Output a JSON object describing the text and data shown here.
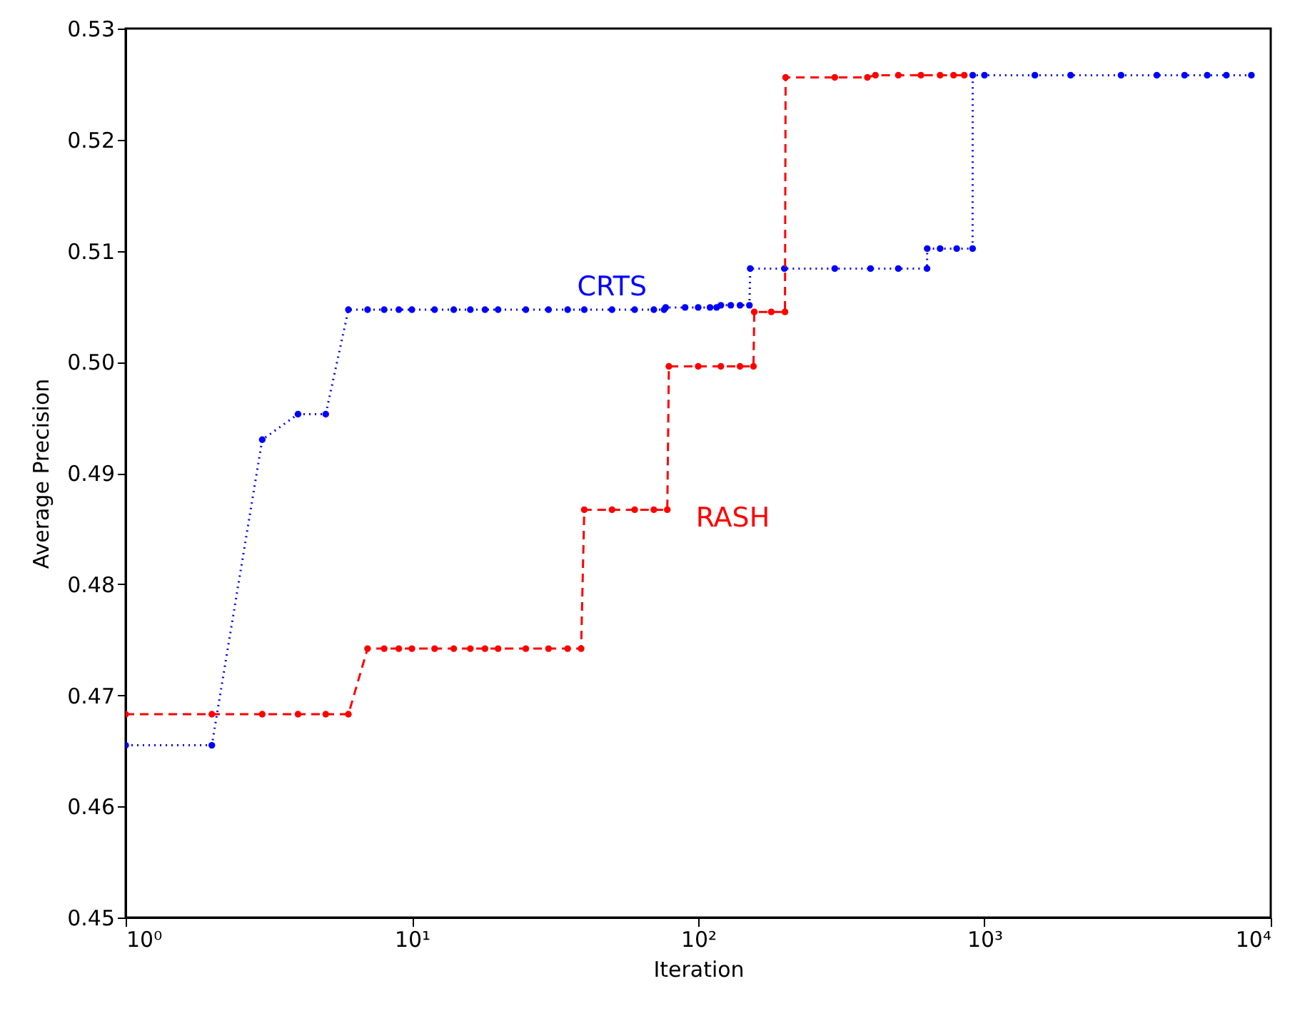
{
  "chart_data": {
    "type": "line",
    "xlabel": "Iteration",
    "ylabel": "Average Precision",
    "log": "x",
    "grid": false,
    "marker": "circle",
    "xlim": [
      1,
      10000
    ],
    "xticks": [
      {
        "value": 1,
        "label": "10⁰"
      },
      {
        "value": 10,
        "label": "10¹"
      },
      {
        "value": 100,
        "label": "10²"
      },
      {
        "value": 1000,
        "label": "10³"
      },
      {
        "value": 10000,
        "label": "10⁴"
      }
    ],
    "ylim": [
      0.45,
      0.53
    ],
    "yticks": [
      0.45,
      0.46,
      0.47,
      0.48,
      0.49,
      {
        "value": 0.5,
        "label": "0.50"
      },
      0.51,
      0.52,
      0.53
    ],
    "series": [
      {
        "name": "CRTS",
        "color": "#0000ff",
        "line_style": "dotted",
        "x": [
          1,
          2,
          3,
          4,
          5,
          6,
          7,
          8,
          9,
          10,
          12,
          14,
          16,
          18,
          20,
          25,
          30,
          35,
          40,
          50,
          60,
          70,
          76,
          77,
          90,
          100,
          110,
          116,
          120,
          130,
          140,
          151,
          152,
          200,
          300,
          400,
          500,
          630,
          631,
          700,
          800,
          909,
          910,
          1000,
          1500,
          2000,
          3000,
          4000,
          5000,
          6000,
          7000,
          8560
        ],
        "values": [
          0.4655,
          0.4655,
          0.493,
          0.4953,
          0.4953,
          0.5047,
          0.5047,
          0.5047,
          0.5047,
          0.5047,
          0.5047,
          0.5047,
          0.5047,
          0.5047,
          0.5047,
          0.5047,
          0.5047,
          0.5047,
          0.5047,
          0.5047,
          0.5047,
          0.5047,
          0.5047,
          0.5049,
          0.5049,
          0.5049,
          0.5049,
          0.5049,
          0.5051,
          0.5051,
          0.5051,
          0.5051,
          0.5084,
          0.5084,
          0.5084,
          0.5084,
          0.5084,
          0.5084,
          0.5102,
          0.5102,
          0.5102,
          0.5102,
          0.5258,
          0.5258,
          0.5258,
          0.5258,
          0.5258,
          0.5258,
          0.5258,
          0.5258,
          0.5258,
          0.5258
        ]
      },
      {
        "name": "RASH",
        "color": "#ff0000",
        "line_style": "dashed",
        "x": [
          1,
          2,
          3,
          4,
          5,
          6,
          7,
          8,
          9,
          10,
          12,
          14,
          16,
          18,
          20,
          25,
          30,
          35,
          39,
          40,
          50,
          60,
          70,
          78,
          79,
          100,
          120,
          140,
          156,
          157,
          180,
          201,
          202,
          300,
          390,
          416,
          500,
          600,
          700,
          780,
          850
        ],
        "values": [
          0.4683,
          0.4683,
          0.4683,
          0.4683,
          0.4683,
          0.4683,
          0.4742,
          0.4742,
          0.4742,
          0.4742,
          0.4742,
          0.4742,
          0.4742,
          0.4742,
          0.4742,
          0.4742,
          0.4742,
          0.4742,
          0.4742,
          0.4867,
          0.4867,
          0.4867,
          0.4867,
          0.4867,
          0.4996,
          0.4996,
          0.4996,
          0.4996,
          0.4996,
          0.5045,
          0.5045,
          0.5045,
          0.5256,
          0.5256,
          0.5256,
          0.5258,
          0.5258,
          0.5258,
          0.5258,
          0.5258,
          0.5258
        ]
      }
    ]
  }
}
